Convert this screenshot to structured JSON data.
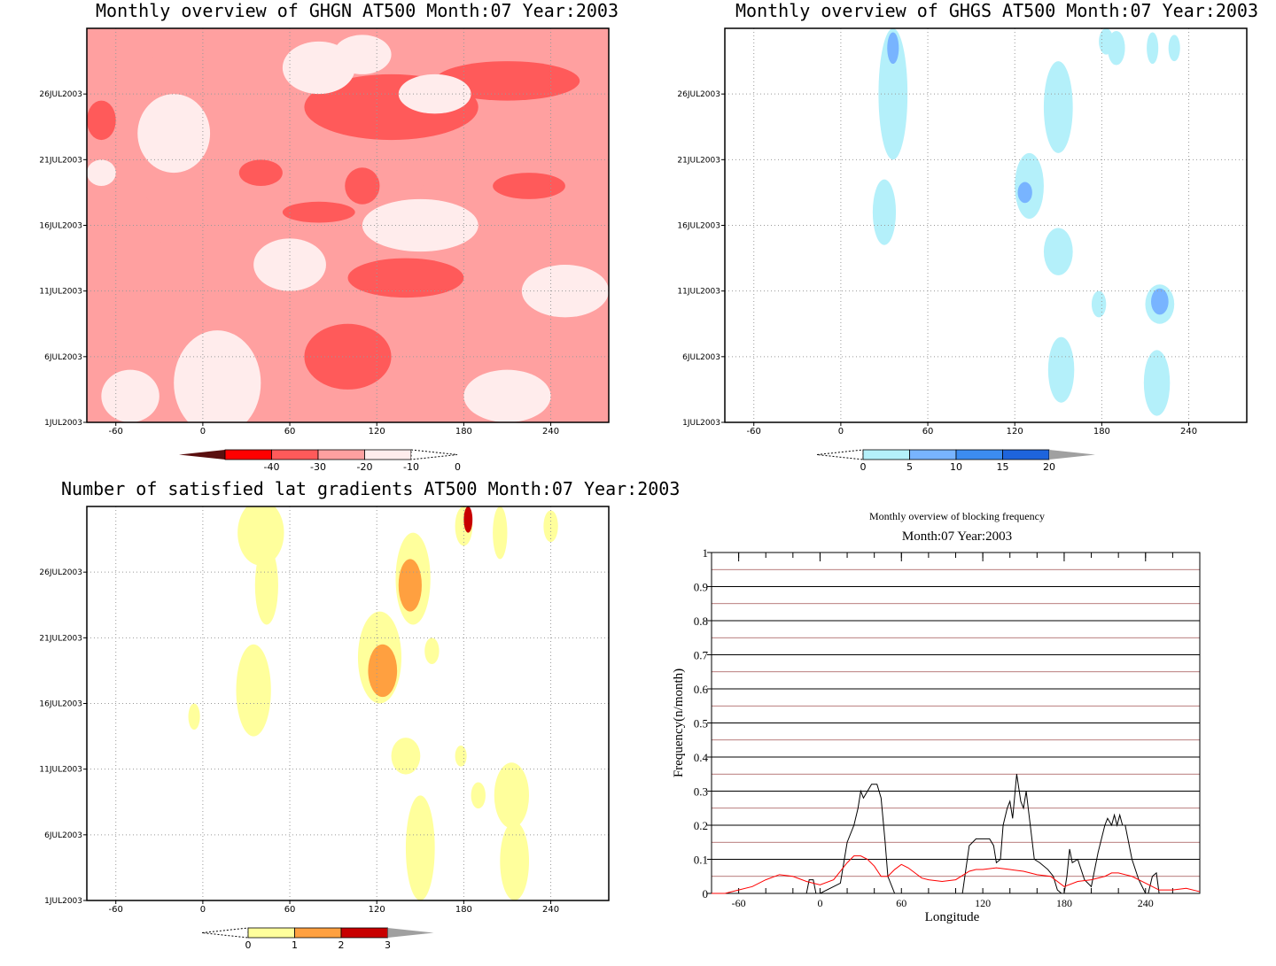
{
  "chart_data": [
    {
      "type": "heatmap",
      "title": "Monthly overview of GHGN AT500 Month:07 Year:2003",
      "x_ticks": [
        -60,
        0,
        60,
        120,
        180,
        240
      ],
      "xlim": [
        -80,
        280
      ],
      "y_ticks": [
        "1JUL2003",
        "6JUL2003",
        "11JUL2003",
        "16JUL2003",
        "21JUL2003",
        "26JUL2003"
      ],
      "ylim": [
        1,
        31
      ],
      "colorbar": {
        "ticks": [
          "-40",
          "-30",
          "-20",
          "-10",
          "0"
        ],
        "colors": [
          "#5a0f0f",
          "#ff0000",
          "#ff5a5a",
          "#ffa0a0",
          "#ffecec",
          "#ffffff"
        ]
      },
      "levels": [
        {
          "color": "#ffa0a0",
          "blobs": [
            [
              -60,
              16,
              30,
              3
            ],
            [
              -20,
              26,
              35,
              3
            ],
            [
              0,
              13,
              40,
              2.5
            ],
            [
              40,
              8,
              40,
              3
            ],
            [
              100,
              21,
              60,
              4
            ],
            [
              200,
              17,
              60,
              3
            ],
            [
              240,
              8,
              40,
              3
            ]
          ]
        },
        {
          "color": "#ff5a5a",
          "blobs": [
            [
              -70,
              24,
              10,
              1.5
            ],
            [
              40,
              20,
              15,
              1
            ],
            [
              80,
              17,
              25,
              0.8
            ],
            [
              110,
              19,
              12,
              1.4
            ],
            [
              130,
              25,
              60,
              2.5
            ],
            [
              210,
              27,
              50,
              1.5
            ],
            [
              140,
              12,
              40,
              1.5
            ],
            [
              100,
              6,
              30,
              2.5
            ],
            [
              225,
              19,
              25,
              1
            ]
          ]
        },
        {
          "color": "#ffecec",
          "blobs": [
            [
              -50,
              3,
              20,
              2
            ],
            [
              10,
              4,
              30,
              4
            ],
            [
              60,
              13,
              25,
              2
            ],
            [
              -20,
              23,
              25,
              3
            ],
            [
              150,
              16,
              40,
              2
            ],
            [
              250,
              11,
              30,
              2
            ],
            [
              210,
              3,
              30,
              2
            ],
            [
              -70,
              20,
              10,
              1
            ],
            [
              110,
              29,
              20,
              1.5
            ],
            [
              80,
              28,
              25,
              2
            ],
            [
              160,
              26,
              25,
              1.5
            ]
          ]
        }
      ]
    },
    {
      "type": "heatmap",
      "title": "Monthly overview of GHGS AT500 Month:07 Year:2003",
      "x_ticks": [
        -60,
        0,
        60,
        120,
        180,
        240
      ],
      "xlim": [
        -80,
        280
      ],
      "y_ticks": [
        "1JUL2003",
        "6JUL2003",
        "11JUL2003",
        "16JUL2003",
        "21JUL2003",
        "26JUL2003"
      ],
      "ylim": [
        1,
        31
      ],
      "colorbar": {
        "ticks": [
          "0",
          "5",
          "10",
          "15",
          "20"
        ],
        "colors": [
          "#ffffff",
          "#b4f0fa",
          "#78b4ff",
          "#3c8cf0",
          "#1e64dc",
          "#a0a0a0"
        ]
      },
      "levels": [
        {
          "color": "#b4f0fa",
          "blobs": [
            [
              36,
              26,
              10,
              5
            ],
            [
              30,
              17,
              8,
              2.5
            ],
            [
              130,
              19,
              10,
              2.5
            ],
            [
              150,
              25,
              10,
              3.5
            ],
            [
              150,
              14,
              10,
              1.8
            ],
            [
              152,
              5,
              9,
              2.5
            ],
            [
              218,
              4,
              9,
              2.5
            ],
            [
              220,
              10,
              10,
              1.5
            ],
            [
              190,
              29.5,
              6,
              1.3
            ],
            [
              215,
              29.5,
              4,
              1.2
            ],
            [
              183,
              30,
              5,
              1
            ],
            [
              230,
              29.5,
              4,
              1
            ],
            [
              178,
              10,
              5,
              1
            ]
          ]
        },
        {
          "color": "#78b4ff",
          "blobs": [
            [
              36,
              29.5,
              4,
              1.2
            ],
            [
              127,
              18.5,
              5,
              0.8
            ],
            [
              220,
              10.2,
              6,
              1
            ]
          ]
        }
      ]
    },
    {
      "type": "heatmap",
      "title": "Number of satisfied lat gradients AT500 Month:07 Year:2003",
      "x_ticks": [
        -60,
        0,
        60,
        120,
        180,
        240
      ],
      "xlim": [
        -80,
        280
      ],
      "y_ticks": [
        "1JUL2003",
        "6JUL2003",
        "11JUL2003",
        "16JUL2003",
        "21JUL2003",
        "26JUL2003"
      ],
      "ylim": [
        1,
        31
      ],
      "colorbar": {
        "ticks": [
          "0",
          "1",
          "2",
          "3"
        ],
        "colors": [
          "#ffffff",
          "#ffff9c",
          "#ffa040",
          "#c80000",
          "#a0a0a0"
        ]
      },
      "levels": [
        {
          "color": "#ffff9c",
          "blobs": [
            [
              40,
              29,
              16,
              2.5
            ],
            [
              44,
              25,
              8,
              3
            ],
            [
              35,
              17,
              12,
              3.5
            ],
            [
              -6,
              15,
              4,
              1
            ],
            [
              122,
              19.5,
              15,
              3.5
            ],
            [
              145,
              25.5,
              12,
              3.5
            ],
            [
              140,
              12,
              10,
              1.4
            ],
            [
              150,
              5,
              10,
              4
            ],
            [
              213,
              9,
              12,
              2.5
            ],
            [
              215,
              4,
              10,
              3
            ],
            [
              158,
              20,
              5,
              1
            ],
            [
              180,
              29.5,
              6,
              1.5
            ],
            [
              205,
              29,
              5,
              2
            ],
            [
              240,
              29.5,
              5,
              1.2
            ],
            [
              178,
              12,
              4,
              0.8
            ],
            [
              190,
              9,
              5,
              1
            ]
          ]
        },
        {
          "color": "#ffa040",
          "blobs": [
            [
              143,
              25,
              8,
              2
            ],
            [
              124,
              18.5,
              10,
              2
            ]
          ]
        },
        {
          "color": "#c80000",
          "blobs": [
            [
              183,
              30,
              3,
              1
            ]
          ]
        }
      ]
    },
    {
      "type": "line",
      "title": "Monthly overview of blocking frequency",
      "subtitle": "Month:07 Year:2003",
      "xlabel": "Longitude",
      "ylabel": "Frequency(n/month)",
      "x_ticks": [
        -60,
        0,
        60,
        120,
        180,
        240
      ],
      "xlim": [
        -80,
        280
      ],
      "y_ticks": [
        "0",
        "0.1",
        "0.2",
        "0.3",
        "0.4",
        "0.5",
        "0.6",
        "0.7",
        "0.8",
        "0.9",
        "1"
      ],
      "ylim": [
        0,
        1
      ],
      "grid": true,
      "series": [
        {
          "color": "#000000",
          "x": [
            -75,
            -10,
            -8,
            -5,
            -3,
            0,
            10,
            15,
            20,
            25,
            28,
            30,
            32,
            35,
            38,
            40,
            42,
            45,
            48,
            50,
            55,
            60,
            65,
            70,
            80,
            90,
            100,
            105,
            110,
            115,
            120,
            125,
            128,
            130,
            133,
            135,
            138,
            140,
            142,
            145,
            148,
            150,
            152,
            155,
            158,
            162,
            168,
            172,
            175,
            178,
            180,
            182,
            184,
            186,
            190,
            195,
            200,
            205,
            210,
            212,
            215,
            217,
            219,
            221,
            223,
            225,
            230,
            235,
            240,
            242,
            245,
            248,
            250,
            260,
            270,
            278
          ],
          "y": [
            0,
            0,
            0.04,
            0.04,
            0,
            0,
            0.02,
            0.03,
            0.15,
            0.2,
            0.25,
            0.3,
            0.28,
            0.3,
            0.32,
            0.32,
            0.32,
            0.28,
            0.15,
            0.05,
            0,
            0,
            0,
            0,
            0,
            0,
            0,
            0,
            0.14,
            0.16,
            0.16,
            0.16,
            0.14,
            0.09,
            0.1,
            0.2,
            0.25,
            0.27,
            0.22,
            0.35,
            0.27,
            0.25,
            0.3,
            0.2,
            0.1,
            0.09,
            0.07,
            0.05,
            0.01,
            0,
            0,
            0.05,
            0.13,
            0.09,
            0.1,
            0.04,
            0.02,
            0.12,
            0.2,
            0.22,
            0.2,
            0.23,
            0.2,
            0.23,
            0.2,
            0.2,
            0.1,
            0.04,
            0,
            0,
            0.05,
            0.06,
            0,
            0,
            0,
            0
          ]
        },
        {
          "color": "#ff0000",
          "x": [
            -80,
            -70,
            -60,
            -50,
            -40,
            -30,
            -20,
            -10,
            0,
            10,
            20,
            25,
            30,
            35,
            40,
            45,
            50,
            55,
            60,
            65,
            70,
            75,
            80,
            90,
            100,
            110,
            115,
            120,
            130,
            140,
            150,
            160,
            170,
            180,
            190,
            200,
            210,
            215,
            220,
            230,
            240,
            250,
            260,
            270,
            280
          ],
          "y": [
            0,
            0,
            0.01,
            0.02,
            0.04,
            0.055,
            0.05,
            0.035,
            0.025,
            0.04,
            0.09,
            0.11,
            0.11,
            0.1,
            0.08,
            0.05,
            0.05,
            0.07,
            0.085,
            0.075,
            0.06,
            0.045,
            0.04,
            0.035,
            0.04,
            0.065,
            0.07,
            0.07,
            0.075,
            0.07,
            0.065,
            0.055,
            0.05,
            0.02,
            0.035,
            0.04,
            0.05,
            0.06,
            0.06,
            0.05,
            0.03,
            0.01,
            0.01,
            0.015,
            0.005
          ]
        }
      ]
    }
  ]
}
